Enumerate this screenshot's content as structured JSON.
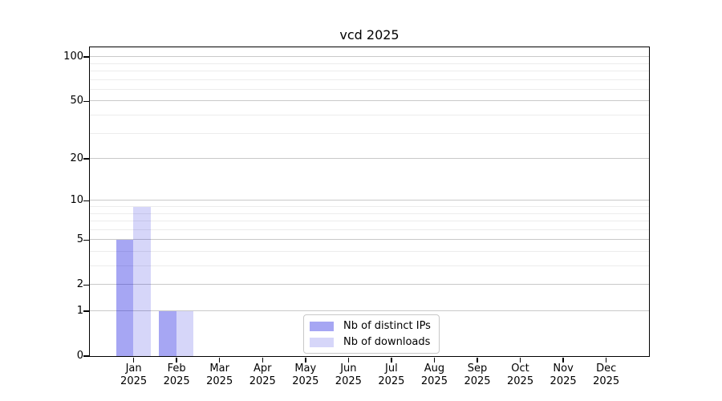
{
  "chart_data": {
    "type": "bar",
    "title": "vcd 2025",
    "yscale": "log1p",
    "grid": "horizontal",
    "categories": [
      "Jan",
      "Feb",
      "Mar",
      "Apr",
      "May",
      "Jun",
      "Jul",
      "Aug",
      "Sep",
      "Oct",
      "Nov",
      "Dec"
    ],
    "x_year_label": "2025",
    "series": [
      {
        "name": "Nb of distinct IPs",
        "color": "rgba(0,0,220,0.35)",
        "values": [
          5,
          1,
          0,
          0,
          0,
          0,
          0,
          0,
          0,
          0,
          0,
          0
        ]
      },
      {
        "name": "Nb of downloads",
        "color": "rgba(0,0,220,0.16)",
        "values": [
          9,
          1,
          0,
          0,
          0,
          0,
          0,
          0,
          0,
          0,
          0,
          0
        ]
      }
    ],
    "ytick_values": [
      0,
      1,
      2,
      5,
      10,
      20,
      50,
      100
    ],
    "y_minor_values": [
      3,
      4,
      6,
      7,
      8,
      9,
      30,
      40,
      60,
      70,
      80,
      90
    ],
    "ylim": [
      0,
      117
    ],
    "legend": {
      "position": "bottom-center-inside"
    },
    "colors": {
      "major_grid": "#c9c9c9",
      "minor_grid": "#ececec",
      "axis": "#000000",
      "text": "#000000",
      "legend_border": "#c8c8c8",
      "legend_bg": "#ffffff"
    }
  }
}
